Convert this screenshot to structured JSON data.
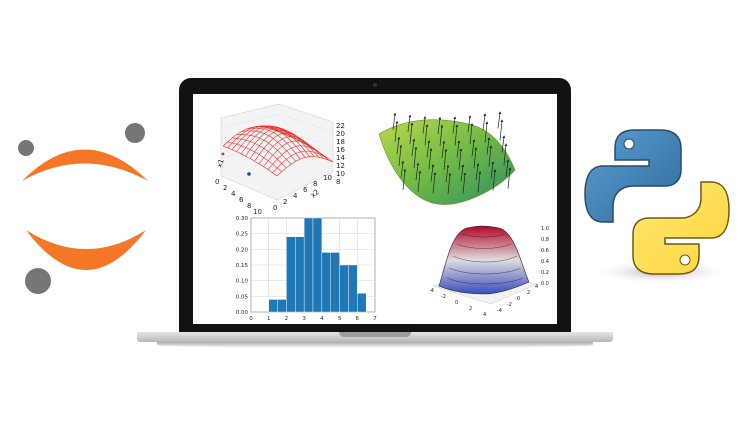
{
  "colors": {
    "jupyter_orange": "#f37726",
    "jupyter_gray": "#767677",
    "python_blue": "#3873a8",
    "python_yellow": "#ffd43b",
    "hist_blue": "#1f77b4",
    "bezel": "#111111",
    "laptop_silver": "#c9cacc"
  },
  "icons": {
    "left_logo": "jupyter-logo",
    "right_logo": "python-logo"
  },
  "wireframe_plot": {
    "z_ticks": [
      "22",
      "20",
      "18",
      "16",
      "14",
      "12",
      "10",
      "8"
    ],
    "x1_ticks": [
      "0",
      "2",
      "4",
      "6",
      "8",
      "10"
    ],
    "x2_ticks": [
      "0",
      "2",
      "4",
      "6",
      "8",
      "10"
    ],
    "x1_label": "x1",
    "x2_label": "x2"
  },
  "chart_data": [
    {
      "type": "bar",
      "categories": [
        "1",
        "1.5",
        "2",
        "2.5",
        "3",
        "3.5",
        "4",
        "4.5",
        "5",
        "5.5",
        "6"
      ],
      "values": [
        0.04,
        0.04,
        0.24,
        0.24,
        0.3,
        0.3,
        0.19,
        0.19,
        0.15,
        0.15,
        0.06
      ],
      "bin_edges": [
        1,
        1.5,
        2,
        2.5,
        3,
        3.5,
        4,
        4.5,
        5,
        5.5,
        6,
        6.5
      ],
      "xlim": [
        0,
        7
      ],
      "ylim": [
        0,
        0.3
      ],
      "x_ticks": [
        "0",
        "1",
        "2",
        "3",
        "4",
        "5",
        "6",
        "7"
      ],
      "y_ticks": [
        "0.00",
        "0.05",
        "0.10",
        "0.15",
        "0.20",
        "0.25",
        "0.30"
      ],
      "grid": true
    }
  ],
  "surface_plot": {
    "z_ticks": [
      "1.0",
      "0.8",
      "0.6",
      "0.4",
      "0.2",
      "0.0"
    ],
    "x_ticks": [
      "-4",
      "-2",
      "0",
      "2",
      "4"
    ],
    "y_ticks": [
      "-4",
      "-2",
      "0",
      "2",
      "4"
    ]
  }
}
